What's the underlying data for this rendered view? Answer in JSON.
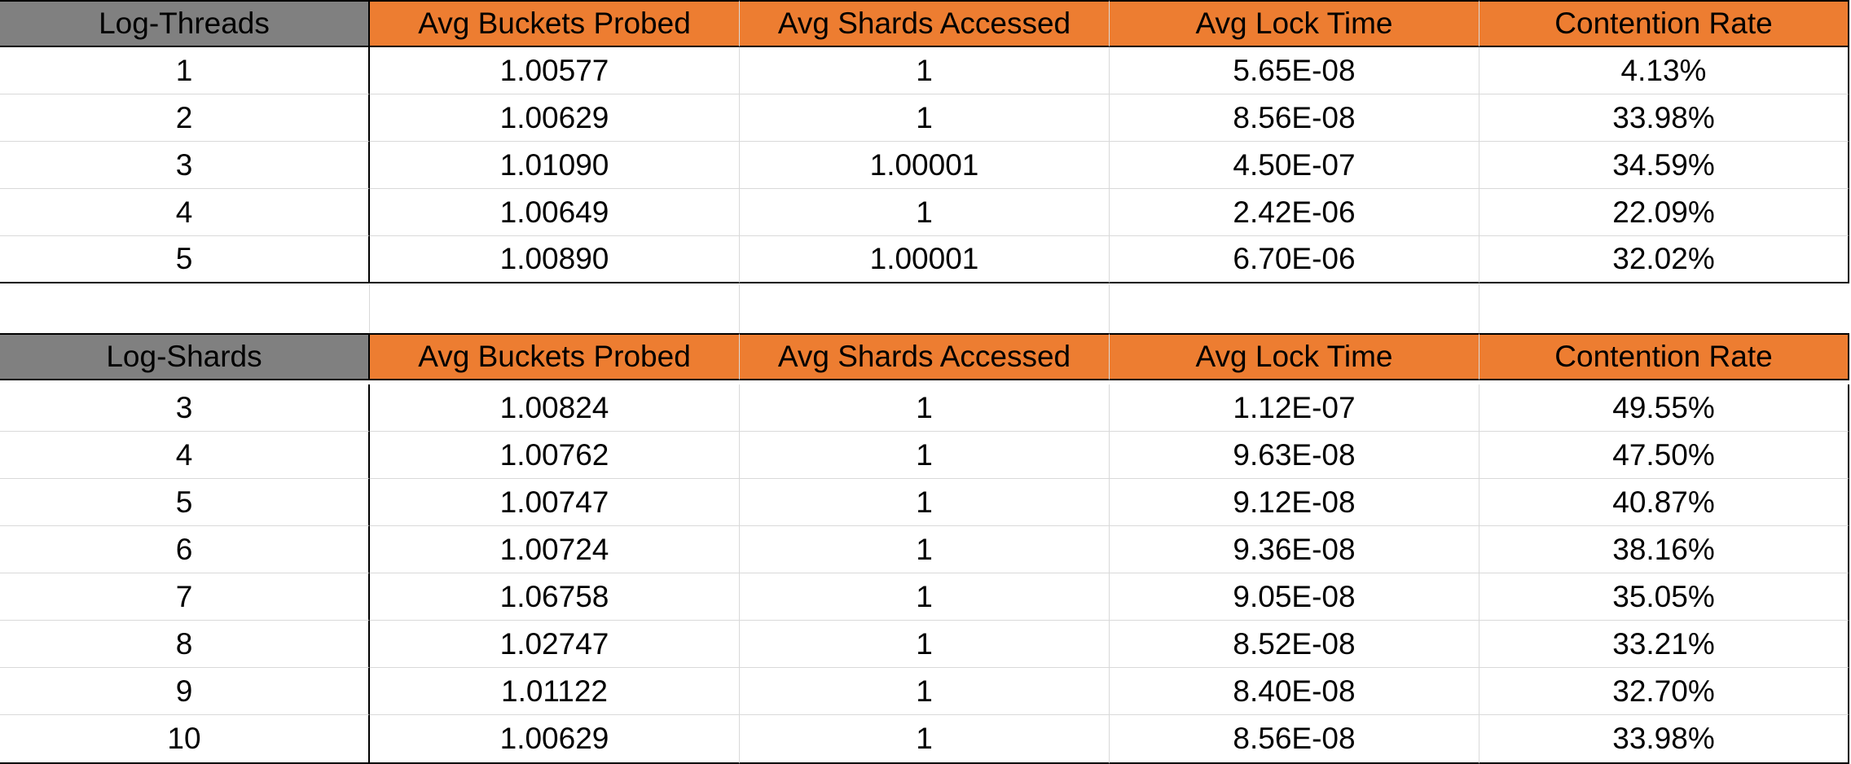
{
  "colors": {
    "header_accent": "#ed7d31",
    "header_first": "#808080",
    "gridline": "#d9d9d9"
  },
  "threads_table": {
    "headers": [
      "Log-Threads",
      "Avg Buckets Probed",
      "Avg Shards Accessed",
      "Avg Lock Time",
      "Contention Rate"
    ],
    "rows": [
      [
        "1",
        "1.00577",
        "1",
        "5.65E-08",
        "4.13%"
      ],
      [
        "2",
        "1.00629",
        "1",
        "8.56E-08",
        "33.98%"
      ],
      [
        "3",
        "1.01090",
        "1.00001",
        "4.50E-07",
        "34.59%"
      ],
      [
        "4",
        "1.00649",
        "1",
        "2.42E-06",
        "22.09%"
      ],
      [
        "5",
        "1.00890",
        "1.00001",
        "6.70E-06",
        "32.02%"
      ]
    ]
  },
  "shards_table": {
    "headers": [
      "Log-Shards",
      "Avg Buckets Probed",
      "Avg Shards Accessed",
      "Avg Lock Time",
      "Contention Rate"
    ],
    "rows": [
      [
        "3",
        "1.00824",
        "1",
        "1.12E-07",
        "49.55%"
      ],
      [
        "4",
        "1.00762",
        "1",
        "9.63E-08",
        "47.50%"
      ],
      [
        "5",
        "1.00747",
        "1",
        "9.12E-08",
        "40.87%"
      ],
      [
        "6",
        "1.00724",
        "1",
        "9.36E-08",
        "38.16%"
      ],
      [
        "7",
        "1.06758",
        "1",
        "9.05E-08",
        "35.05%"
      ],
      [
        "8",
        "1.02747",
        "1",
        "8.52E-08",
        "33.21%"
      ],
      [
        "9",
        "1.01122",
        "1",
        "8.40E-08",
        "32.70%"
      ],
      [
        "10",
        "1.00629",
        "1",
        "8.56E-08",
        "33.98%"
      ]
    ]
  }
}
